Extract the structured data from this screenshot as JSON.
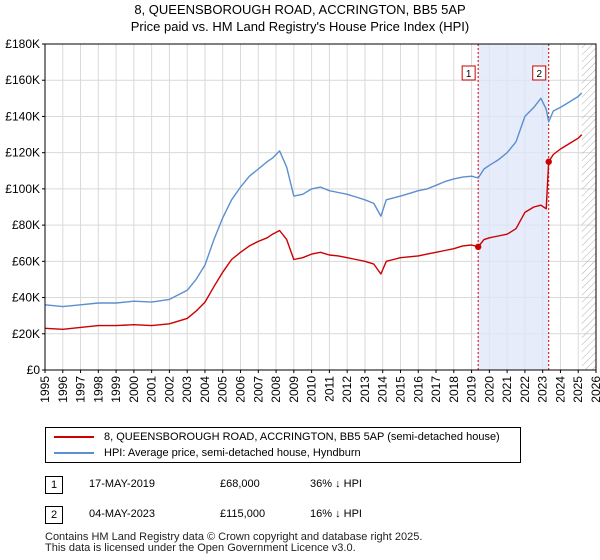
{
  "title_line1": "8, QUEENSBOROUGH ROAD, ACCRINGTON, BB5 5AP",
  "title_line2": "Price paid vs. HM Land Registry's House Price Index (HPI)",
  "legend": {
    "property_label": "8, QUEENSBOROUGH ROAD, ACCRINGTON, BB5 5AP (semi-detached house)",
    "hpi_label": "HPI: Average price, semi-detached house, Hyndburn"
  },
  "sales": [
    {
      "marker": "1",
      "date": "17-MAY-2019",
      "price": "£68,000",
      "hpi_diff": "36% ↓ HPI"
    },
    {
      "marker": "2",
      "date": "04-MAY-2023",
      "price": "£115,000",
      "hpi_diff": "16% ↓ HPI"
    }
  ],
  "footer_line1": "Contains HM Land Registry data © Crown copyright and database right 2025.",
  "footer_line2": "This data is licensed under the Open Government Licence v3.0.",
  "colors": {
    "property": "#cc0000",
    "hpi": "#5b8fd0",
    "shade": "#dde6f7",
    "vline": "#cc0000"
  },
  "chart_data": {
    "type": "line",
    "xlim": [
      1995,
      2026
    ],
    "ylim": [
      0,
      180000
    ],
    "yticks": [
      0,
      20000,
      40000,
      60000,
      80000,
      100000,
      120000,
      140000,
      160000,
      180000
    ],
    "ytick_labels": [
      "£0",
      "£20K",
      "£40K",
      "£60K",
      "£80K",
      "£100K",
      "£120K",
      "£140K",
      "£160K",
      "£180K"
    ],
    "xticks": [
      1995,
      1996,
      1997,
      1998,
      1999,
      2000,
      2001,
      2002,
      2003,
      2004,
      2005,
      2006,
      2007,
      2008,
      2009,
      2010,
      2011,
      2012,
      2013,
      2014,
      2015,
      2016,
      2017,
      2018,
      2019,
      2020,
      2021,
      2022,
      2023,
      2024,
      2025,
      2026
    ],
    "xtick_labels": [
      "1995",
      "1996",
      "1997",
      "1998",
      "1999",
      "2000",
      "2001",
      "2002",
      "2003",
      "2004",
      "2005",
      "2006",
      "2007",
      "2008",
      "2009",
      "2010",
      "2011",
      "2012",
      "2013",
      "2014",
      "2015",
      "2016",
      "2017",
      "2018",
      "2019",
      "2020",
      "2021",
      "2022",
      "2023",
      "2024",
      "2025",
      "2026"
    ],
    "shaded_region": [
      2019.37,
      2023.34
    ],
    "future_hatch_start": 2025.2,
    "sale_points": [
      {
        "label": "1",
        "x": 2019.37,
        "y": 68000
      },
      {
        "label": "2",
        "x": 2023.34,
        "y": 115000
      }
    ],
    "series": [
      {
        "name": "8, QUEENSBOROUGH ROAD, ACCRINGTON, BB5 5AP (semi-detached house)",
        "x": [
          1995.0,
          1996.0,
          1997.0,
          1998.0,
          1999.0,
          2000.0,
          2001.0,
          2002.0,
          2003.0,
          2003.5,
          2004.0,
          2004.5,
          2005.0,
          2005.5,
          2006.0,
          2006.5,
          2007.0,
          2007.5,
          2007.8,
          2008.2,
          2008.6,
          2009.0,
          2009.5,
          2010.0,
          2010.5,
          2011.0,
          2011.5,
          2012.0,
          2012.5,
          2013.0,
          2013.5,
          2013.9,
          2014.2,
          2014.6,
          2015.0,
          2015.5,
          2016.0,
          2016.5,
          2017.0,
          2017.5,
          2018.0,
          2018.5,
          2019.0,
          2019.37,
          2019.7,
          2020.0,
          2020.5,
          2021.0,
          2021.5,
          2022.0,
          2022.5,
          2022.9,
          2023.2,
          2023.34,
          2023.6,
          2024.0,
          2024.5,
          2025.0,
          2025.2
        ],
        "y": [
          23000,
          22500,
          23500,
          24500,
          24500,
          25000,
          24500,
          25500,
          28500,
          32500,
          37500,
          46000,
          54000,
          61000,
          65000,
          68500,
          71000,
          73000,
          75000,
          77000,
          72000,
          61000,
          62000,
          64000,
          65000,
          63500,
          63000,
          62000,
          61000,
          60000,
          58500,
          53000,
          60000,
          61000,
          62000,
          62500,
          63000,
          64000,
          65000,
          66000,
          67000,
          68500,
          69000,
          68000,
          72000,
          73000,
          74000,
          75000,
          78000,
          87000,
          90000,
          91000,
          89000,
          115000,
          119000,
          122000,
          125000,
          128000,
          130000
        ]
      },
      {
        "name": "HPI: Average price, semi-detached house, Hyndburn",
        "x": [
          1995.0,
          1996.0,
          1997.0,
          1998.0,
          1999.0,
          2000.0,
          2001.0,
          2002.0,
          2003.0,
          2003.5,
          2004.0,
          2004.5,
          2005.0,
          2005.5,
          2006.0,
          2006.5,
          2007.0,
          2007.5,
          2007.8,
          2008.2,
          2008.6,
          2009.0,
          2009.5,
          2010.0,
          2010.5,
          2011.0,
          2011.5,
          2012.0,
          2012.5,
          2013.0,
          2013.5,
          2013.9,
          2014.2,
          2014.6,
          2015.0,
          2015.5,
          2016.0,
          2016.5,
          2017.0,
          2017.5,
          2018.0,
          2018.5,
          2019.0,
          2019.37,
          2019.7,
          2020.0,
          2020.5,
          2021.0,
          2021.5,
          2022.0,
          2022.5,
          2022.9,
          2023.2,
          2023.34,
          2023.6,
          2024.0,
          2024.5,
          2025.0,
          2025.2
        ],
        "y": [
          36000,
          35000,
          36000,
          37000,
          37000,
          38000,
          37500,
          39000,
          44000,
          50000,
          58000,
          72000,
          84000,
          94000,
          101000,
          107000,
          111000,
          115000,
          117000,
          121000,
          112000,
          96000,
          97000,
          100000,
          101000,
          99000,
          98000,
          97000,
          95500,
          94000,
          92000,
          85000,
          94000,
          95000,
          96000,
          97500,
          99000,
          100000,
          102000,
          104000,
          105500,
          106500,
          107000,
          106000,
          111000,
          113000,
          116000,
          120000,
          126000,
          140000,
          145000,
          150000,
          144000,
          137000,
          143000,
          145000,
          148000,
          151000,
          153000
        ]
      }
    ]
  }
}
